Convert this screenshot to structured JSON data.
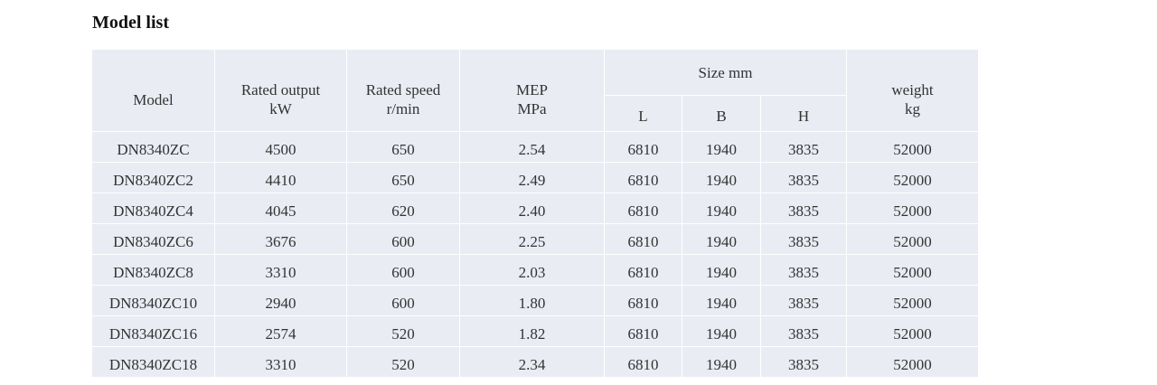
{
  "title": "Model list",
  "table": {
    "columns": [
      {
        "lines": [
          "Model"
        ]
      },
      {
        "lines": [
          "Rated output",
          "kW"
        ]
      },
      {
        "lines": [
          "Rated speed",
          "r/min"
        ]
      },
      {
        "lines": [
          "MEP",
          "MPa"
        ]
      },
      {
        "group": "Size mm",
        "sub": [
          "L",
          "B",
          "H"
        ]
      },
      {
        "lines": [
          "weight",
          "kg"
        ]
      }
    ],
    "rows": [
      [
        "DN8340ZC",
        "4500",
        "650",
        "2.54",
        "6810",
        "1940",
        "3835",
        "52000"
      ],
      [
        "DN8340ZC2",
        "4410",
        "650",
        "2.49",
        "6810",
        "1940",
        "3835",
        "52000"
      ],
      [
        "DN8340ZC4",
        "4045",
        "620",
        "2.40",
        "6810",
        "1940",
        "3835",
        "52000"
      ],
      [
        "DN8340ZC6",
        "3676",
        "600",
        "2.25",
        "6810",
        "1940",
        "3835",
        "52000"
      ],
      [
        "DN8340ZC8",
        "3310",
        "600",
        "2.03",
        "6810",
        "1940",
        "3835",
        "52000"
      ],
      [
        "DN8340ZC10",
        "2940",
        "600",
        "1.80",
        "6810",
        "1940",
        "3835",
        "52000"
      ],
      [
        "DN8340ZC16",
        "2574",
        "520",
        "1.82",
        "6810",
        "1940",
        "3835",
        "52000"
      ],
      [
        "DN8340ZC18",
        "3310",
        "520",
        "2.34",
        "6810",
        "1940",
        "3835",
        "52000"
      ]
    ]
  }
}
